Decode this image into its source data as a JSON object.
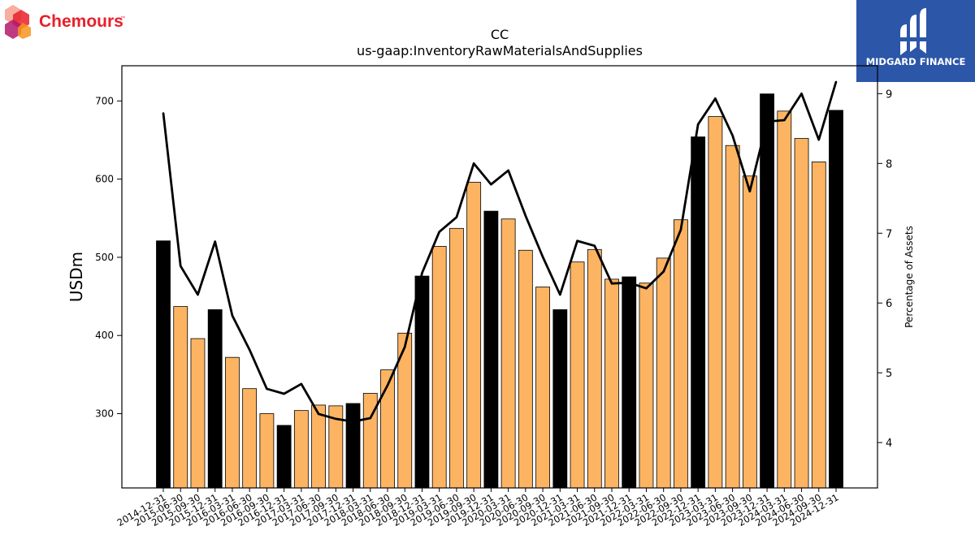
{
  "brand": {
    "left_logo_text": "Chemours",
    "left_logo_tm": "™",
    "right_logo_text": "MIDGARD FINANCE",
    "left_logo_colors": [
      "#e8202a",
      "#f7941d",
      "#b5176b"
    ],
    "right_bg_color": "#2c56a8"
  },
  "chart_data": {
    "type": "bar",
    "title": "CC",
    "subtitle": "us-gaap:InventoryRawMaterialsAndSupplies",
    "ylabel": "USDm",
    "y2label": "Percentage of Assets",
    "ylim": [
      205,
      745
    ],
    "y2lim": [
      3.35,
      9.4
    ],
    "yticks": [
      300,
      400,
      500,
      600,
      700
    ],
    "y2ticks": [
      4,
      5,
      6,
      7,
      8,
      9
    ],
    "grid": false,
    "colors": {
      "bar_annual": "#000000",
      "bar_quarter": "#fdb462",
      "line": "#000000"
    },
    "categories": [
      "2014-12-31",
      "2015-06-30",
      "2015-09-30",
      "2015-12-31",
      "2016-03-31",
      "2016-06-30",
      "2016-09-30",
      "2016-12-31",
      "2017-03-31",
      "2017-06-30",
      "2017-09-30",
      "2017-12-31",
      "2018-03-31",
      "2018-06-30",
      "2018-09-30",
      "2018-12-31",
      "2019-03-31",
      "2019-06-30",
      "2019-09-30",
      "2019-12-31",
      "2020-03-31",
      "2020-06-30",
      "2020-09-30",
      "2020-12-31",
      "2021-03-31",
      "2021-06-30",
      "2021-09-30",
      "2021-12-31",
      "2022-03-31",
      "2022-06-30",
      "2022-09-30",
      "2022-12-31",
      "2023-03-31",
      "2023-06-30",
      "2023-09-30",
      "2023-12-31",
      "2024-03-31",
      "2024-06-30",
      "2024-09-30",
      "2024-12-31"
    ],
    "series": [
      {
        "type": "bar",
        "values": [
          521,
          437,
          396,
          433,
          372,
          332,
          300,
          285,
          304,
          311,
          310,
          313,
          326,
          356,
          403,
          476,
          514,
          537,
          596,
          559,
          549,
          509,
          462,
          433,
          494,
          510,
          472,
          475,
          467,
          499,
          548,
          654,
          680,
          643,
          604,
          709,
          687,
          652,
          622,
          688
        ],
        "annual_flags": [
          1,
          0,
          0,
          1,
          0,
          0,
          0,
          1,
          0,
          0,
          0,
          1,
          0,
          0,
          0,
          1,
          0,
          0,
          0,
          1,
          0,
          0,
          0,
          1,
          0,
          0,
          0,
          1,
          0,
          0,
          0,
          1,
          0,
          0,
          0,
          1,
          0,
          0,
          0,
          1
        ]
      },
      {
        "type": "line",
        "axis": "right",
        "values": [
          8.72,
          6.53,
          6.12,
          6.88,
          5.82,
          5.33,
          4.77,
          4.7,
          4.84,
          4.41,
          4.34,
          4.3,
          4.35,
          4.82,
          5.37,
          6.43,
          7.02,
          7.23,
          8.0,
          7.7,
          7.9,
          7.25,
          6.66,
          6.12,
          6.89,
          6.82,
          6.28,
          6.29,
          6.21,
          6.45,
          7.05,
          8.56,
          8.93,
          8.4,
          7.6,
          8.6,
          8.62,
          9.0,
          8.34,
          9.17
        ]
      }
    ]
  }
}
